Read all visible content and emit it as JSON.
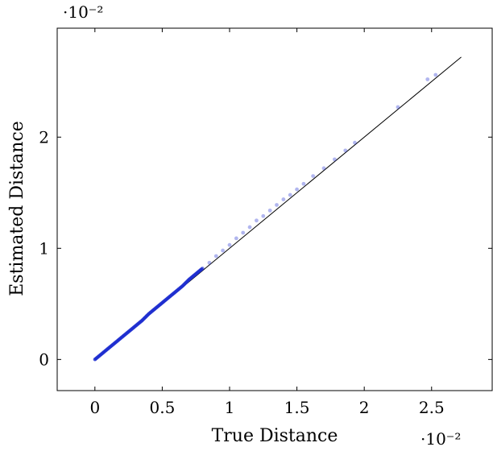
{
  "chart_data": {
    "type": "scatter",
    "title": "",
    "xlabel": "True Distance",
    "ylabel": "Estimated Distance",
    "x_scale_label": "·10⁻²",
    "y_scale_label": "·10⁻²",
    "xlim": [
      -0.28,
      2.95
    ],
    "ylim": [
      -0.28,
      2.98
    ],
    "x_ticks": [
      0,
      0.5,
      1,
      1.5,
      2,
      2.5
    ],
    "x_tick_labels": [
      "0",
      "0.5",
      "1",
      "1.5",
      "2",
      "2.5"
    ],
    "y_ticks": [
      0,
      1,
      2
    ],
    "y_tick_labels": [
      "0",
      "1",
      "2"
    ],
    "grid": false,
    "reference_line": {
      "x": [
        0,
        2.72
      ],
      "y": [
        0,
        2.72
      ],
      "color": "#000000"
    },
    "series": [
      {
        "color": "#1f2fd0",
        "points": [
          [
            0.0,
            0.0
          ],
          [
            0.05,
            0.05
          ],
          [
            0.1,
            0.1
          ],
          [
            0.15,
            0.15
          ],
          [
            0.2,
            0.2
          ],
          [
            0.25,
            0.25
          ],
          [
            0.3,
            0.3
          ],
          [
            0.35,
            0.35
          ],
          [
            0.4,
            0.41
          ],
          [
            0.45,
            0.46
          ],
          [
            0.5,
            0.51
          ],
          [
            0.55,
            0.56
          ],
          [
            0.6,
            0.61
          ],
          [
            0.65,
            0.66
          ],
          [
            0.7,
            0.72
          ],
          [
            0.75,
            0.77
          ],
          [
            0.8,
            0.82
          ],
          [
            0.85,
            0.87
          ],
          [
            0.9,
            0.93
          ],
          [
            0.95,
            0.98
          ],
          [
            1.0,
            1.03
          ],
          [
            1.05,
            1.09
          ],
          [
            1.1,
            1.14
          ],
          [
            1.15,
            1.19
          ],
          [
            1.2,
            1.25
          ],
          [
            1.25,
            1.29
          ],
          [
            1.3,
            1.34
          ],
          [
            1.35,
            1.39
          ],
          [
            1.4,
            1.44
          ],
          [
            1.45,
            1.48
          ],
          [
            1.5,
            1.53
          ],
          [
            1.55,
            1.58
          ],
          [
            1.62,
            1.65
          ],
          [
            1.7,
            1.72
          ],
          [
            1.78,
            1.8
          ],
          [
            1.86,
            1.88
          ],
          [
            1.93,
            1.95
          ],
          [
            2.25,
            2.27
          ],
          [
            2.47,
            2.52
          ],
          [
            2.53,
            2.56
          ]
        ]
      }
    ]
  }
}
